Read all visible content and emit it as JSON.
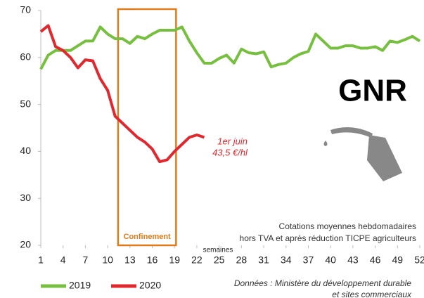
{
  "chart_data": {
    "type": "line",
    "title": "GNR",
    "x": [
      1,
      2,
      3,
      4,
      5,
      6,
      7,
      8,
      9,
      10,
      11,
      12,
      13,
      14,
      15,
      16,
      17,
      18,
      19,
      20,
      21,
      22,
      23,
      24,
      25,
      26,
      27,
      28,
      29,
      30,
      31,
      32,
      33,
      34,
      35,
      36,
      37,
      38,
      39,
      40,
      41,
      42,
      43,
      44,
      45,
      46,
      47,
      48,
      49,
      50,
      51,
      52
    ],
    "xlim": [
      1,
      52
    ],
    "xticks": [
      1,
      4,
      7,
      10,
      13,
      16,
      19,
      22,
      25,
      28,
      31,
      34,
      37,
      40,
      43,
      46,
      49,
      52
    ],
    "xlabel": "semaines",
    "ylim": [
      20,
      70
    ],
    "yticks": [
      20,
      30,
      40,
      50,
      60,
      70
    ],
    "series": [
      {
        "name": "2019",
        "color": "#77bf3f",
        "values": [
          57.5,
          60.5,
          61.5,
          61.5,
          61.5,
          62.5,
          63.5,
          63.5,
          66.5,
          65,
          64,
          64,
          63,
          64.5,
          64,
          65,
          65.8,
          65.8,
          65.8,
          66.5,
          63.5,
          61,
          58.8,
          58.8,
          59.8,
          60.5,
          58.8,
          61.8,
          61,
          60.8,
          61.2,
          58,
          58.5,
          58.8,
          60,
          60.8,
          61.3,
          65,
          63.5,
          62,
          62,
          62.5,
          62.5,
          62,
          62,
          62.3,
          61.5,
          63.5,
          63.2,
          63.8,
          64.5,
          63.5
        ]
      },
      {
        "name": "2020",
        "color": "#e0282e",
        "values": [
          65.5,
          66.8,
          62.3,
          61.5,
          60,
          57.8,
          59.5,
          59.3,
          55.5,
          53,
          47.5,
          46,
          44.5,
          43,
          42,
          40.5,
          37.8,
          38.2,
          40,
          41.5,
          43,
          43.5,
          43,
          null,
          null,
          null,
          null,
          null,
          null,
          null,
          null,
          null,
          null,
          null,
          null,
          null,
          null,
          null,
          null,
          null,
          null,
          null,
          null,
          null,
          null,
          null,
          null,
          null,
          null,
          null,
          null,
          null
        ]
      }
    ],
    "annotation": {
      "lines": [
        "1er juin",
        "43,5 €/hl"
      ],
      "x": 22,
      "y": 43.5
    },
    "confinement": {
      "label": "Confinement",
      "x": [
        11.4,
        19.2
      ],
      "color": "#e07b1a"
    },
    "notes": [
      "Cotations moyennes hebdomadaires",
      "hors TVA et après réduction TICPE agriculteurs"
    ],
    "source": [
      "Données : Ministère du développement durable",
      "et sites commerciaux"
    ]
  }
}
